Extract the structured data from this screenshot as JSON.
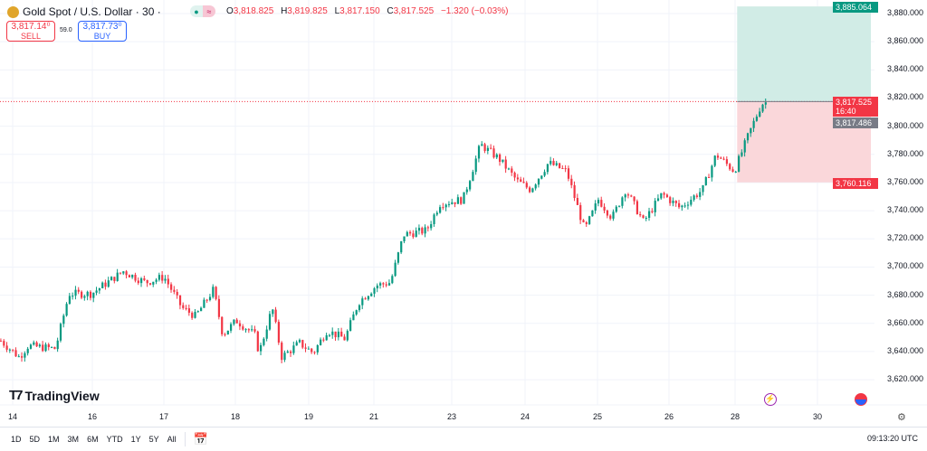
{
  "header": {
    "symbol": "Gold Spot / U.S. Dollar · 30 ·",
    "ohlc": {
      "o_label": "O",
      "o": "3,818.825",
      "h_label": "H",
      "h": "3,819.825",
      "l_label": "L",
      "l": "3,817.150",
      "c_label": "C",
      "c": "3,817.525",
      "change": "−1.320 (−0.03%)"
    },
    "sell": {
      "price": "3,817.14⁰",
      "label": "SELL"
    },
    "buy": {
      "price": "3,817.73⁰",
      "label": "BUY"
    },
    "spread": "59.0"
  },
  "price_axis": [
    "3,880.000",
    "3,860.000",
    "3,840.000",
    "3,820.000",
    "3,800.000",
    "3,780.000",
    "3,760.000",
    "3,740.000",
    "3,720.000",
    "3,700.000",
    "3,680.000",
    "3,660.000",
    "3,640.000",
    "3,620.000"
  ],
  "tags": {
    "take_profit": "3,885.064",
    "current": "3,817.525",
    "countdown": "16:40",
    "entry": "3,817.486",
    "stop_loss": "3,760.116"
  },
  "time_axis": [
    "14",
    "16",
    "17",
    "18",
    "19",
    "21",
    "23",
    "24",
    "25",
    "26",
    "28",
    "30"
  ],
  "brand": "TradingView",
  "ranges": [
    "1D",
    "5D",
    "1M",
    "3M",
    "6M",
    "YTD",
    "1Y",
    "5Y",
    "All"
  ],
  "clock": "09:13:20 UTC",
  "colors": {
    "up": "#089981",
    "down": "#f23645",
    "tp_zone": "#d1ece6",
    "sl_zone": "#fad7da"
  },
  "chart_data": {
    "type": "candlestick",
    "ylim": [
      3610,
      3890
    ],
    "approx_close": [
      [
        13.68,
        3647.6
      ],
      [
        14.14,
        3636
      ],
      [
        14.36,
        3644
      ],
      [
        15.05,
        3642
      ],
      [
        15.39,
        3681
      ],
      [
        15.95,
        3681
      ],
      [
        16.42,
        3697
      ],
      [
        16.73,
        3689
      ],
      [
        16.99,
        3693
      ],
      [
        17.24,
        3671
      ],
      [
        17.43,
        3665
      ],
      [
        17.68,
        3684
      ],
      [
        17.81,
        3652
      ],
      [
        18.0,
        3662
      ],
      [
        18.25,
        3652
      ],
      [
        18.31,
        3639
      ],
      [
        18.49,
        3671
      ],
      [
        18.62,
        3636
      ],
      [
        18.86,
        3646
      ],
      [
        19.11,
        3639
      ],
      [
        19.53,
        3655
      ],
      [
        20.08,
        3649
      ],
      [
        20.5,
        3675
      ],
      [
        21.05,
        3687
      ],
      [
        21.4,
        3689
      ],
      [
        21.74,
        3723
      ],
      [
        22.33,
        3726
      ],
      [
        22.67,
        3745
      ],
      [
        23.14,
        3748
      ],
      [
        23.38,
        3787
      ],
      [
        23.63,
        3777
      ],
      [
        23.88,
        3761
      ],
      [
        24.06,
        3755
      ],
      [
        24.31,
        3774
      ],
      [
        24.56,
        3768
      ],
      [
        24.81,
        3726
      ],
      [
        25.0,
        3748
      ],
      [
        25.19,
        3735
      ],
      [
        25.38,
        3755
      ],
      [
        25.63,
        3732
      ],
      [
        25.89,
        3752
      ],
      [
        26.3,
        3742
      ],
      [
        26.99,
        3755
      ],
      [
        27.4,
        3780
      ],
      [
        27.95,
        3768
      ],
      [
        28.29,
        3793
      ],
      [
        28.62,
        3816
      ],
      [
        28.79,
        3817.5
      ]
    ],
    "position": {
      "entry": 3817.486,
      "take_profit": 3885.064,
      "stop_loss": 3760.116
    },
    "last_price": 3817.525
  }
}
